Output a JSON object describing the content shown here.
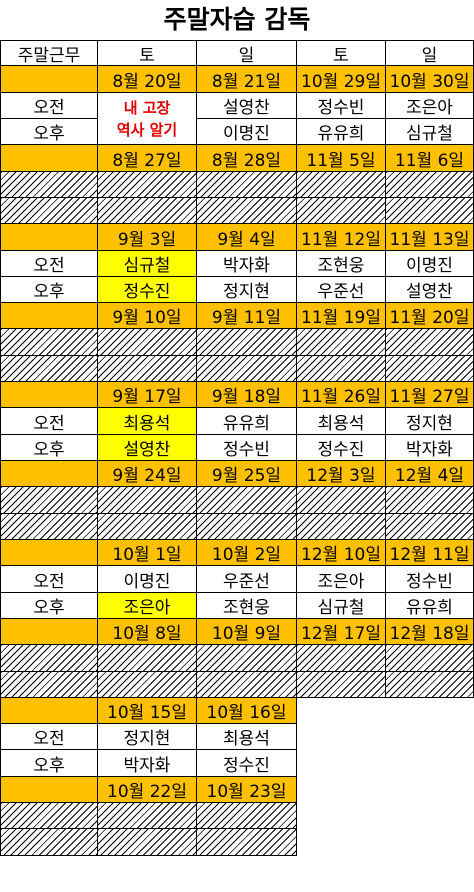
{
  "title": "주말자습 감독",
  "header": [
    "주말근무",
    "토",
    "일",
    "토",
    "일"
  ],
  "labels": {
    "am": "오전",
    "pm": "오후"
  },
  "note": [
    "내 고장",
    "역사 알기"
  ],
  "left": [
    {
      "dates": [
        "8월 20일",
        "8월 21일"
      ],
      "am": [
        "",
        "설영찬"
      ],
      "pm": [
        "",
        "이명진"
      ],
      "note": true
    },
    {
      "dates": [
        "8월 27일",
        "8월 28일"
      ],
      "hatched": true
    },
    {
      "dates": [
        "9월 3일",
        "9월 4일"
      ],
      "am": [
        "심규철",
        "박자화"
      ],
      "pm": [
        "정수진",
        "정지현"
      ],
      "yellow": true
    },
    {
      "dates": [
        "9월 10일",
        "9월 11일"
      ],
      "hatched": true
    },
    {
      "dates": [
        "9월 17일",
        "9월 18일"
      ],
      "am": [
        "최용석",
        "유유희"
      ],
      "pm": [
        "설영찬",
        "정수빈"
      ],
      "yellow": true
    },
    {
      "dates": [
        "9월 24일",
        "9월 25일"
      ],
      "hatched": true
    },
    {
      "dates": [
        "10월 1일",
        "10월 2일"
      ],
      "am": [
        "이명진",
        "우준선"
      ],
      "pm": [
        "조은아",
        "조현웅"
      ],
      "yellowPm": true
    },
    {
      "dates": [
        "10월 8일",
        "10월 9일"
      ],
      "hatched": true
    },
    {
      "dates": [
        "10월 15일",
        "10월 16일"
      ],
      "am": [
        "정지현",
        "최용석"
      ],
      "pm": [
        "박자화",
        "정수진"
      ]
    },
    {
      "dates": [
        "10월 22일",
        "10월 23일"
      ],
      "hatched": true
    }
  ],
  "right": [
    {
      "dates": [
        "10월 29일",
        "10월 30일"
      ],
      "am": [
        "정수빈",
        "조은아"
      ],
      "pm": [
        "유유희",
        "심규철"
      ]
    },
    {
      "dates": [
        "11월 5일",
        "11월 6일"
      ],
      "hatched": true
    },
    {
      "dates": [
        "11월 12일",
        "11월 13일"
      ],
      "am": [
        "조현웅",
        "이명진"
      ],
      "pm": [
        "우준선",
        "설영찬"
      ]
    },
    {
      "dates": [
        "11월 19일",
        "11월 20일"
      ],
      "hatched": true
    },
    {
      "dates": [
        "11월 26일",
        "11월 27일"
      ],
      "am": [
        "최용석",
        "정지현"
      ],
      "pm": [
        "정수진",
        "박자화"
      ]
    },
    {
      "dates": [
        "12월 3일",
        "12월 4일"
      ],
      "hatched": true
    },
    {
      "dates": [
        "12월 10일",
        "12월 11일"
      ],
      "am": [
        "조은아",
        "정수빈"
      ],
      "pm": [
        "심규철",
        "유유희"
      ]
    },
    {
      "dates": [
        "12월 17일",
        "12월 18일"
      ],
      "hatched": true
    }
  ]
}
